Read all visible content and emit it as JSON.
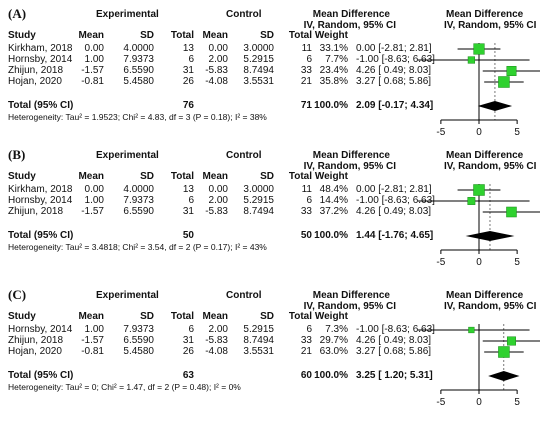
{
  "chart_data": [
    {
      "type": "forest",
      "panel_label": "(A)",
      "headers": {
        "group1": "Experimental",
        "group2": "Control",
        "study": "Study",
        "mean1": "Mean",
        "sd1": "SD",
        "total1": "Total",
        "mean2": "Mean",
        "sd2": "SD",
        "total2": "Total",
        "weight": "Weight",
        "md_title": "Mean Difference",
        "md_method": "IV, Random, 95% CI",
        "plot_title": "Mean Difference",
        "plot_method": "IV, Random, 95% CI"
      },
      "studies": [
        {
          "name": "Kirkham, 2018",
          "mean1": "0.00",
          "sd1": "4.0000",
          "total1": "13",
          "mean2": "0.00",
          "sd2": "3.0000",
          "total2": "11",
          "weight_label": "33.1%",
          "ci_label": "0.00 [-2.81; 2.81]",
          "md": 0.0,
          "lower": -2.81,
          "upper": 2.81,
          "weight": 33.1
        },
        {
          "name": "Hornsby, 2014",
          "mean1": "1.00",
          "sd1": "7.9373",
          "total1": "6",
          "mean2": "2.00",
          "sd2": "5.2915",
          "total2": "6",
          "weight_label": "7.7%",
          "ci_label": "-1.00 [-8.63; 6.63]",
          "md": -1.0,
          "lower": -8.63,
          "upper": 6.63,
          "weight": 7.7
        },
        {
          "name": "Zhijun, 2018",
          "mean1": "-1.57",
          "sd1": "6.5590",
          "total1": "31",
          "mean2": "-5.83",
          "sd2": "8.7494",
          "total2": "33",
          "weight_label": "23.4%",
          "ci_label": "4.26 [ 0.49; 8.03]",
          "md": 4.26,
          "lower": 0.49,
          "upper": 8.03,
          "weight": 23.4
        },
        {
          "name": "Hojan, 2020",
          "mean1": "-0.81",
          "sd1": "5.4580",
          "total1": "26",
          "mean2": "-4.08",
          "sd2": "3.5531",
          "total2": "21",
          "weight_label": "35.8%",
          "ci_label": "3.27 [ 0.68; 5.86]",
          "md": 3.27,
          "lower": 0.68,
          "upper": 5.86,
          "weight": 35.8
        }
      ],
      "total": {
        "label": "Total (95% CI)",
        "total1": "76",
        "total2": "71",
        "weight_label": "100.0%",
        "ci_label": "2.09 [-0.17; 4.34]",
        "md": 2.09,
        "lower": -0.17,
        "upper": 4.34
      },
      "heterogeneity": "Heterogeneity: Tau² = 1.9523; Chi² = 4.83, df = 3 (P = 0.18); I² = 38%",
      "x_ticks": [
        -5,
        0,
        5
      ],
      "x_tick_labels": [
        "-5",
        "0",
        "5"
      ],
      "xlim": [
        -8,
        8
      ]
    },
    {
      "type": "forest",
      "panel_label": "(B)",
      "headers": {
        "group1": "Experimental",
        "group2": "Control",
        "study": "Study",
        "mean1": "Mean",
        "sd1": "SD",
        "total1": "Total",
        "mean2": "Mean",
        "sd2": "SD",
        "total2": "Total",
        "weight": "Weight",
        "md_title": "Mean Difference",
        "md_method": "IV, Random, 95% CI",
        "plot_title": "Mean Difference",
        "plot_method": "IV, Random, 95% CI"
      },
      "studies": [
        {
          "name": "Kirkham, 2018",
          "mean1": "0.00",
          "sd1": "4.0000",
          "total1": "13",
          "mean2": "0.00",
          "sd2": "3.0000",
          "total2": "11",
          "weight_label": "48.4%",
          "ci_label": "0.00 [-2.81; 2.81]",
          "md": 0.0,
          "lower": -2.81,
          "upper": 2.81,
          "weight": 48.4
        },
        {
          "name": "Hornsby, 2014",
          "mean1": "1.00",
          "sd1": "7.9373",
          "total1": "6",
          "mean2": "2.00",
          "sd2": "5.2915",
          "total2": "6",
          "weight_label": "14.4%",
          "ci_label": "-1.00 [-8.63; 6.63]",
          "md": -1.0,
          "lower": -8.63,
          "upper": 6.63,
          "weight": 14.4
        },
        {
          "name": "Zhijun, 2018",
          "mean1": "-1.57",
          "sd1": "6.5590",
          "total1": "31",
          "mean2": "-5.83",
          "sd2": "8.7494",
          "total2": "33",
          "weight_label": "37.2%",
          "ci_label": "4.26 [ 0.49; 8.03]",
          "md": 4.26,
          "lower": 0.49,
          "upper": 8.03,
          "weight": 37.2
        }
      ],
      "total": {
        "label": "Total (95% CI)",
        "total1": "50",
        "total2": "50",
        "weight_label": "100.0%",
        "ci_label": "1.44 [-1.76; 4.65]",
        "md": 1.44,
        "lower": -1.76,
        "upper": 4.65
      },
      "heterogeneity": "Heterogeneity: Tau² = 3.4818; Chi² = 3.54, df = 2 (P = 0.17); I² = 43%",
      "x_ticks": [
        -5,
        0,
        5
      ],
      "x_tick_labels": [
        "-5",
        "0",
        "5"
      ],
      "xlim": [
        -8,
        8
      ]
    },
    {
      "type": "forest",
      "panel_label": "(C)",
      "headers": {
        "group1": "Experimental",
        "group2": "Control",
        "study": "Study",
        "mean1": "Mean",
        "sd1": "SD",
        "total1": "Total",
        "mean2": "Mean",
        "sd2": "SD",
        "total2": "Total",
        "weight": "Weight",
        "md_title": "Mean Difference",
        "md_method": "IV, Random, 95% CI",
        "plot_title": "Mean Difference",
        "plot_method": "IV, Random, 95% CI"
      },
      "studies": [
        {
          "name": "Hornsby, 2014",
          "mean1": "1.00",
          "sd1": "7.9373",
          "total1": "6",
          "mean2": "2.00",
          "sd2": "5.2915",
          "total2": "6",
          "weight_label": "7.3%",
          "ci_label": "-1.00 [-8.63; 6.63]",
          "md": -1.0,
          "lower": -8.63,
          "upper": 6.63,
          "weight": 7.3
        },
        {
          "name": "Zhijun, 2018",
          "mean1": "-1.57",
          "sd1": "6.5590",
          "total1": "31",
          "mean2": "-5.83",
          "sd2": "8.7494",
          "total2": "33",
          "weight_label": "29.7%",
          "ci_label": "4.26 [ 0.49; 8.03]",
          "md": 4.26,
          "lower": 0.49,
          "upper": 8.03,
          "weight": 29.7
        },
        {
          "name": "Hojan, 2020",
          "mean1": "-0.81",
          "sd1": "5.4580",
          "total1": "26",
          "mean2": "-4.08",
          "sd2": "3.5531",
          "total2": "21",
          "weight_label": "63.0%",
          "ci_label": "3.27 [ 0.68; 5.86]",
          "md": 3.27,
          "lower": 0.68,
          "upper": 5.86,
          "weight": 63.0
        }
      ],
      "total": {
        "label": "Total (95% CI)",
        "total1": "63",
        "total2": "60",
        "weight_label": "100.0%",
        "ci_label": "3.25 [ 1.20; 5.31]",
        "md": 3.25,
        "lower": 1.2,
        "upper": 5.31
      },
      "heterogeneity": "Heterogeneity: Tau² = 0; Chi² = 1.47, df = 2 (P = 0.48); I² = 0%",
      "x_ticks": [
        -5,
        0,
        5
      ],
      "x_tick_labels": [
        "-5",
        "0",
        "5"
      ],
      "xlim": [
        -8,
        8
      ]
    }
  ],
  "colors": {
    "square": "#2fd12f",
    "square_edge": "#1a8a1a",
    "diamond": "#000000",
    "line": "#000000",
    "reference": "#000000",
    "dashed": "#555555"
  }
}
